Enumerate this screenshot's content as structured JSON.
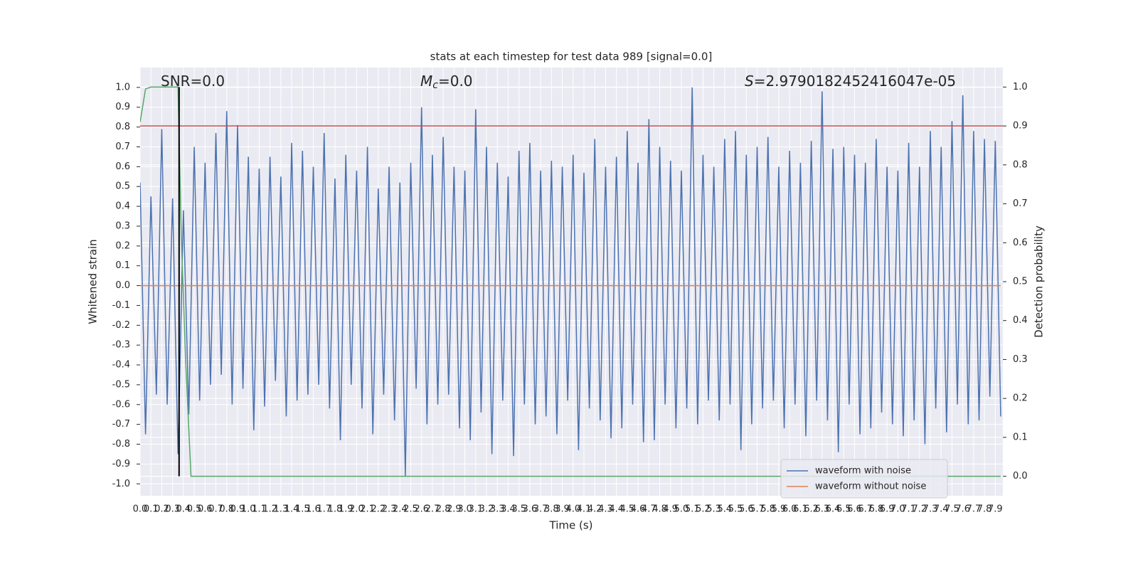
{
  "chart_data": {
    "type": "line",
    "title": "stats at each timestep for test data 989 [signal=0.0]",
    "xlabel": "Time (s)",
    "ylabel": "Whitened strain",
    "y2label": "Detection probability",
    "annotations": [
      {
        "text": "SNR=0.0"
      },
      {
        "italic": "M",
        "sub": "c",
        "text": "=0.0"
      },
      {
        "italic": "S",
        "text": "=2.9790182452416047e-05"
      }
    ],
    "xlim": [
      0,
      7.97
    ],
    "ylim": [
      -1.06,
      1.1
    ],
    "y2lim": [
      -0.05,
      1.05
    ],
    "grid": true,
    "legend": "lower right",
    "xticks": [
      {
        "value": 0,
        "label": "0.0"
      },
      0.1,
      0.2,
      0.3,
      0.4,
      0.5,
      0.6,
      0.7,
      0.8,
      0.9,
      {
        "value": 1,
        "label": "1.0"
      },
      1.1,
      1.2,
      1.3,
      1.4,
      1.5,
      1.6,
      1.7,
      1.8,
      1.9,
      {
        "value": 2,
        "label": "2.0"
      },
      2.1,
      2.2,
      2.3,
      2.4,
      2.5,
      2.6,
      2.7,
      2.8,
      2.9,
      {
        "value": 3,
        "label": "3.0"
      },
      3.1,
      3.2,
      3.3,
      3.4,
      3.5,
      3.6,
      3.7,
      3.8,
      3.9,
      {
        "value": 4,
        "label": "4.0"
      },
      4.1,
      4.2,
      4.3,
      4.4,
      4.5,
      4.6,
      4.7,
      4.8,
      4.9,
      {
        "value": 5,
        "label": "5.0"
      },
      5.1,
      5.2,
      5.3,
      5.4,
      5.5,
      5.6,
      5.7,
      5.8,
      5.9,
      {
        "value": 6,
        "label": "6.0"
      },
      6.1,
      6.2,
      6.3,
      6.4,
      6.5,
      6.6,
      6.7,
      6.8,
      6.9,
      {
        "value": 7,
        "label": "7.0"
      },
      7.1,
      7.2,
      7.3,
      7.4,
      7.5,
      7.6,
      7.7,
      7.8,
      7.9
    ],
    "yticks": [
      {
        "value": -1,
        "label": "-1.0"
      },
      -0.9,
      -0.8,
      -0.7,
      -0.6,
      -0.5,
      -0.4,
      -0.3,
      -0.2,
      -0.1,
      {
        "value": 0,
        "label": "0.0"
      },
      0.1,
      0.2,
      0.3,
      0.4,
      0.5,
      0.6,
      0.7,
      0.8,
      0.9,
      {
        "value": 1,
        "label": "1.0"
      }
    ],
    "y2ticks": [
      {
        "value": 0,
        "label": "0.0"
      },
      0.1,
      0.2,
      0.3,
      0.4,
      0.5,
      0.6,
      0.7,
      0.8,
      0.9,
      {
        "value": 1,
        "label": "1.0"
      }
    ],
    "series": [
      {
        "name": "waveform with noise",
        "color": "#4c72b0",
        "x": [
          0,
          0.05,
          0.1,
          0.15,
          0.2,
          0.25,
          0.3,
          0.35,
          0.4,
          0.45,
          0.5,
          0.55,
          0.6,
          0.65,
          0.7,
          0.75,
          0.8,
          0.85,
          0.9,
          0.95,
          1,
          1.05,
          1.1,
          1.15,
          1.2,
          1.25,
          1.3,
          1.35,
          1.4,
          1.45,
          1.5,
          1.55,
          1.6,
          1.65,
          1.7,
          1.75,
          1.8,
          1.85,
          1.9,
          1.95,
          2,
          2.05,
          2.1,
          2.15,
          2.2,
          2.25,
          2.3,
          2.35,
          2.4,
          2.45,
          2.5,
          2.55,
          2.6,
          2.65,
          2.7,
          2.75,
          2.8,
          2.85,
          2.9,
          2.95,
          3,
          3.05,
          3.1,
          3.15,
          3.2,
          3.25,
          3.3,
          3.35,
          3.4,
          3.45,
          3.5,
          3.55,
          3.6,
          3.65,
          3.7,
          3.75,
          3.8,
          3.85,
          3.9,
          3.95,
          4,
          4.05,
          4.1,
          4.15,
          4.2,
          4.25,
          4.3,
          4.35,
          4.4,
          4.45,
          4.5,
          4.55,
          4.6,
          4.65,
          4.7,
          4.75,
          4.8,
          4.85,
          4.9,
          4.95,
          5,
          5.05,
          5.1,
          5.15,
          5.2,
          5.25,
          5.3,
          5.35,
          5.4,
          5.45,
          5.5,
          5.55,
          5.6,
          5.65,
          5.7,
          5.75,
          5.8,
          5.85,
          5.9,
          5.95,
          6,
          6.05,
          6.1,
          6.15,
          6.2,
          6.25,
          6.3,
          6.35,
          6.4,
          6.45,
          6.5,
          6.55,
          6.6,
          6.65,
          6.7,
          6.75,
          6.8,
          6.85,
          6.9,
          6.95,
          7,
          7.05,
          7.1,
          7.15,
          7.2,
          7.25,
          7.3,
          7.35,
          7.4,
          7.45,
          7.5,
          7.55,
          7.6,
          7.65,
          7.7,
          7.75,
          7.8,
          7.85,
          7.9,
          7.95
        ],
        "values": [
          0.52,
          -0.75,
          0.45,
          -0.55,
          0.79,
          -0.6,
          0.44,
          -0.85,
          0.38,
          -0.65,
          0.7,
          -0.58,
          0.62,
          -0.5,
          0.77,
          -0.45,
          0.88,
          -0.6,
          0.81,
          -0.52,
          0.65,
          -0.73,
          0.59,
          -0.61,
          0.65,
          -0.48,
          0.55,
          -0.66,
          0.72,
          -0.58,
          0.68,
          -0.55,
          0.6,
          -0.5,
          0.77,
          -0.62,
          0.54,
          -0.78,
          0.66,
          -0.5,
          0.58,
          -0.62,
          0.7,
          -0.75,
          0.49,
          -0.55,
          0.6,
          -0.68,
          0.52,
          -0.96,
          0.62,
          -0.52,
          0.9,
          -0.7,
          0.66,
          -0.6,
          0.75,
          -0.55,
          0.6,
          -0.72,
          0.58,
          -0.78,
          0.89,
          -0.64,
          0.7,
          -0.85,
          0.62,
          -0.58,
          0.55,
          -0.86,
          0.68,
          -0.6,
          0.72,
          -0.7,
          0.58,
          -0.66,
          0.63,
          -0.75,
          0.6,
          -0.58,
          0.66,
          -0.83,
          0.57,
          -0.62,
          0.74,
          -0.68,
          0.6,
          -0.77,
          0.65,
          -0.72,
          0.78,
          -0.6,
          0.62,
          -0.79,
          0.84,
          -0.78,
          0.7,
          -0.6,
          0.63,
          -0.72,
          0.58,
          -0.62,
          1.0,
          -0.7,
          0.66,
          -0.58,
          0.6,
          -0.68,
          0.74,
          -0.6,
          0.78,
          -0.83,
          0.66,
          -0.7,
          0.7,
          -0.62,
          0.75,
          -0.58,
          0.6,
          -0.72,
          0.68,
          -0.6,
          0.62,
          -0.76,
          0.73,
          -0.58,
          0.98,
          -0.68,
          0.69,
          -0.84,
          0.7,
          -0.6,
          0.66,
          -0.75,
          0.62,
          -0.72,
          0.74,
          -0.64,
          0.6,
          -0.7,
          0.58,
          -0.76,
          0.72,
          -0.68,
          0.6,
          -0.8,
          0.78,
          -0.62,
          0.7,
          -0.74,
          0.83,
          -0.6,
          0.96,
          -0.7,
          0.78,
          -0.68,
          0.74,
          -0.56,
          0.73,
          -0.66
        ]
      },
      {
        "name": "waveform without noise",
        "color": "#dd8452",
        "x": [
          0,
          7.95
        ],
        "values": [
          0,
          0
        ]
      },
      {
        "color": "#55a868",
        "axis": "y2",
        "x": [
          0,
          0.05,
          0.1,
          0.35,
          0.38,
          0.42,
          0.47,
          7.95
        ],
        "values": [
          0.91,
          0.995,
          1.0,
          1.0,
          0.62,
          0.3,
          0.0,
          0.0
        ]
      }
    ],
    "threshold": {
      "value": 0.9,
      "axis": "y2",
      "color": "#c44e52"
    },
    "vline": {
      "x": 0.36,
      "y2range": [
        0,
        1
      ],
      "color": "#000000"
    }
  }
}
